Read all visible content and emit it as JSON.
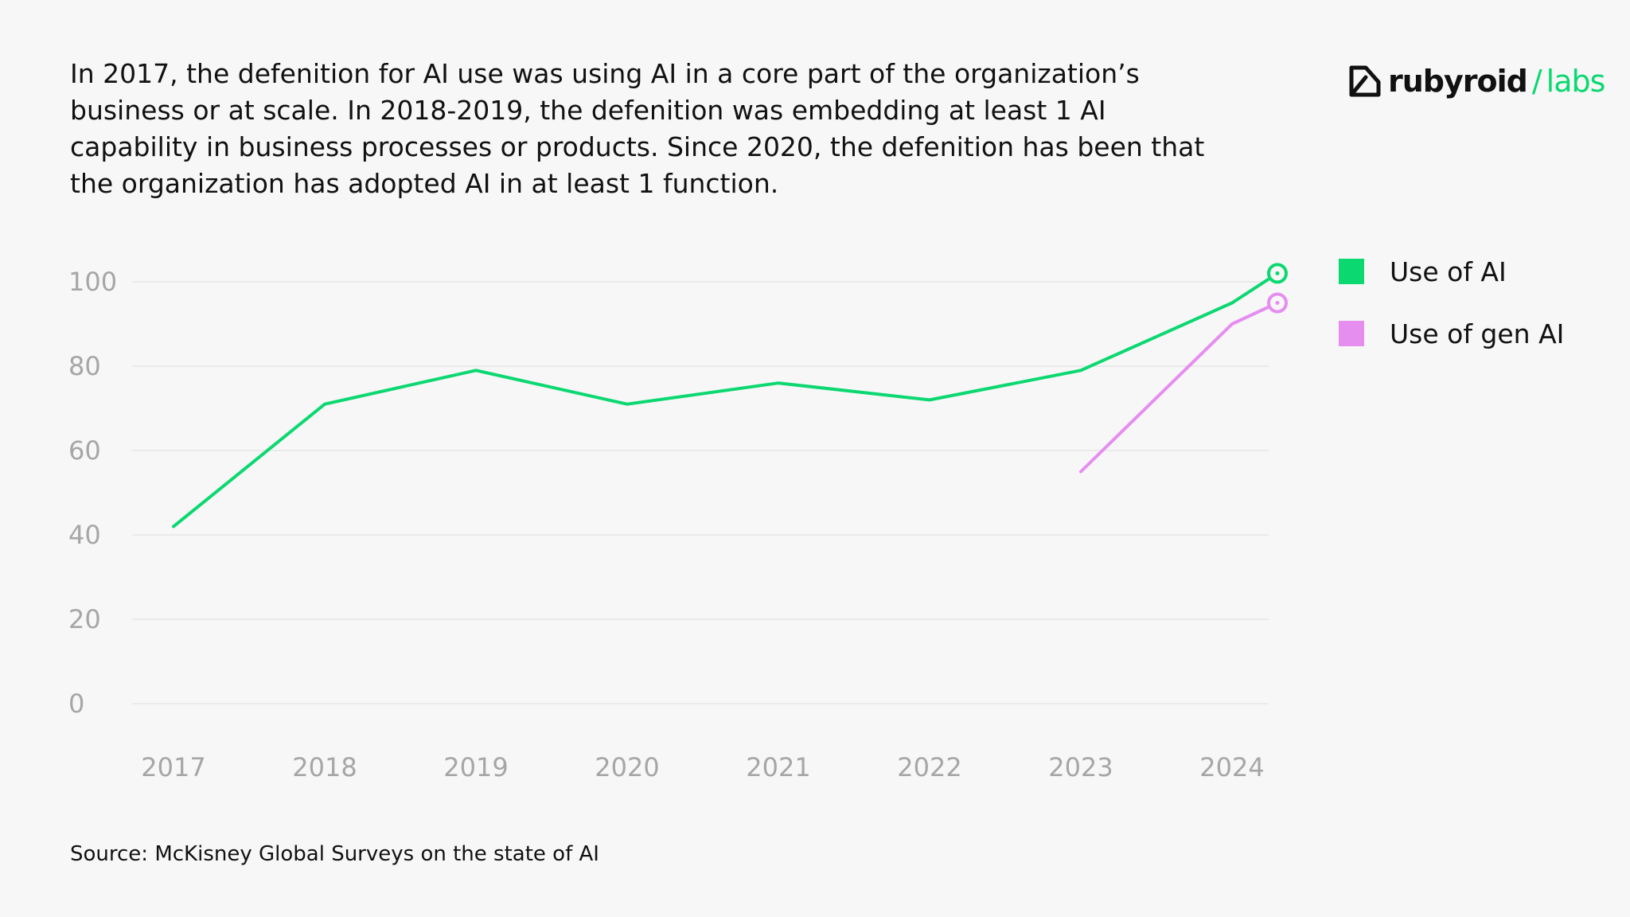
{
  "header": {
    "text": "In 2017, the defenition for AI use was using AI in a core part of the organization’s business or at scale. In 2018-2019, the defenition was embedding at least 1 AI capability in business processes or products. Since 2020, the defenition has been that the organization has adopted AI in at least 1 function."
  },
  "logo": {
    "part1": "rubyroid",
    "separator": "/",
    "part2": "labs",
    "icon": "rubyroid-logo-icon"
  },
  "footer": {
    "source": "Source: McKisney Global Surveys on the state of AI"
  },
  "colors": {
    "use_of_ai": "#0bd870",
    "use_of_gen_ai": "#e58ef0",
    "grid": "#e6e6e6",
    "tick_text": "#a6a6a6"
  },
  "chart_data": {
    "type": "line",
    "x": [
      "2017",
      "2018",
      "2019",
      "2020",
      "2021",
      "2022",
      "2023",
      "2024"
    ],
    "y_ticks": [
      0,
      20,
      40,
      60,
      80,
      100
    ],
    "ylim": [
      0,
      100
    ],
    "grid": true,
    "legend_position": "right",
    "series": [
      {
        "name": "Use of AI",
        "color": "#0bd870",
        "points": [
          {
            "x": 2017.0,
            "y": 42
          },
          {
            "x": 2018.0,
            "y": 71
          },
          {
            "x": 2019.0,
            "y": 79
          },
          {
            "x": 2020.0,
            "y": 71
          },
          {
            "x": 2021.0,
            "y": 76
          },
          {
            "x": 2022.0,
            "y": 72
          },
          {
            "x": 2023.0,
            "y": 79
          },
          {
            "x": 2024.0,
            "y": 95
          },
          {
            "x": 2024.3,
            "y": 102
          }
        ]
      },
      {
        "name": "Use of gen AI",
        "color": "#e58ef0",
        "points": [
          {
            "x": 2023.0,
            "y": 55
          },
          {
            "x": 2024.0,
            "y": 90
          },
          {
            "x": 2024.3,
            "y": 95
          }
        ]
      }
    ]
  }
}
